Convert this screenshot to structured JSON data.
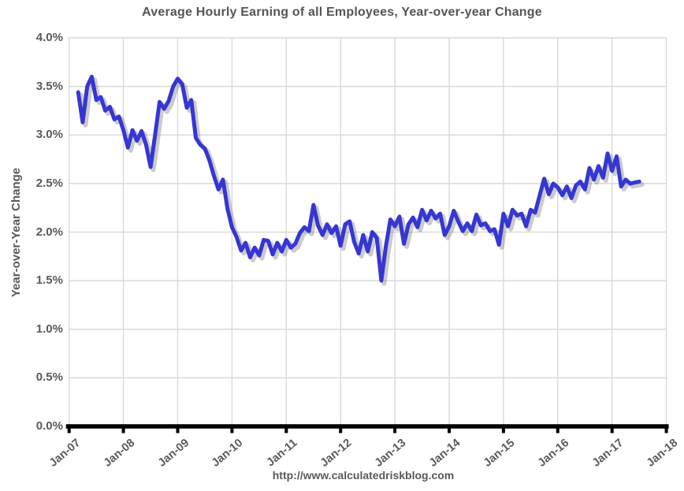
{
  "title": "Average Hourly Earning of all Employees, Year-over-year Change",
  "footer": {
    "url": "http://www.calculatedriskblog.com"
  },
  "y_axis": {
    "title": "Year-over-Year Change",
    "tick_labels": [
      "4.0%",
      "3.5%",
      "3.0%",
      "2.5%",
      "2.0%",
      "1.5%",
      "1.0%",
      "0.5%",
      "0.0%"
    ]
  },
  "x_axis": {
    "tick_labels": [
      "Jan-07",
      "Jan-08",
      "Jan-09",
      "Jan-10",
      "Jan-11",
      "Jan-12",
      "Jan-13",
      "Jan-14",
      "Jan-15",
      "Jan-16",
      "Jan-17",
      "Jan-18"
    ]
  },
  "colors": {
    "line": "#3636d2",
    "line_shadow": "rgba(125,125,125,0.40)",
    "grid": "#d9d9d9",
    "axis_line": "#000000",
    "text": "#595959"
  },
  "chart_data": {
    "type": "line",
    "title": "Average Hourly Earning of all Employees, Year-over-year Change",
    "xlabel": "",
    "ylabel": "Year-over-Year Change",
    "source_url": "http://www.calculatedriskblog.com",
    "frequency": "monthly",
    "x_start": "2007-03",
    "x_end": "2017-07",
    "x_axis_range": [
      "Jan-07",
      "Jan-18"
    ],
    "ylim": [
      0.0,
      4.0
    ],
    "y_tick_step": 0.5,
    "grid": true,
    "legend": "none",
    "series": [
      {
        "name": "Average hourly earnings, year-over-year % change",
        "unit": "percent",
        "values": [
          3.44,
          3.13,
          3.5,
          3.6,
          3.36,
          3.39,
          3.25,
          3.29,
          3.16,
          3.19,
          3.05,
          2.87,
          3.05,
          2.94,
          3.04,
          2.9,
          2.67,
          3.0,
          3.34,
          3.27,
          3.35,
          3.5,
          3.58,
          3.52,
          3.28,
          3.36,
          2.97,
          2.9,
          2.86,
          2.74,
          2.58,
          2.44,
          2.54,
          2.24,
          2.05,
          1.95,
          1.81,
          1.89,
          1.74,
          1.84,
          1.76,
          1.92,
          1.91,
          1.77,
          1.89,
          1.8,
          1.92,
          1.84,
          1.88,
          1.99,
          2.05,
          2.01,
          2.28,
          2.07,
          1.97,
          2.08,
          1.99,
          2.06,
          1.86,
          2.08,
          2.11,
          1.9,
          1.78,
          1.97,
          1.8,
          2.0,
          1.94,
          1.5,
          1.85,
          2.13,
          2.06,
          2.16,
          1.88,
          2.08,
          2.15,
          2.05,
          2.23,
          2.12,
          2.22,
          2.14,
          2.19,
          1.97,
          2.06,
          2.22,
          2.11,
          2.01,
          2.09,
          2.01,
          2.18,
          2.07,
          2.09,
          2.01,
          2.03,
          1.87,
          2.19,
          2.06,
          2.23,
          2.17,
          2.19,
          2.06,
          2.23,
          2.2,
          2.38,
          2.55,
          2.39,
          2.5,
          2.46,
          2.38,
          2.47,
          2.35,
          2.48,
          2.52,
          2.44,
          2.66,
          2.54,
          2.68,
          2.56,
          2.81,
          2.63,
          2.78,
          2.47,
          2.54,
          2.5,
          2.51,
          2.52
        ]
      }
    ]
  }
}
